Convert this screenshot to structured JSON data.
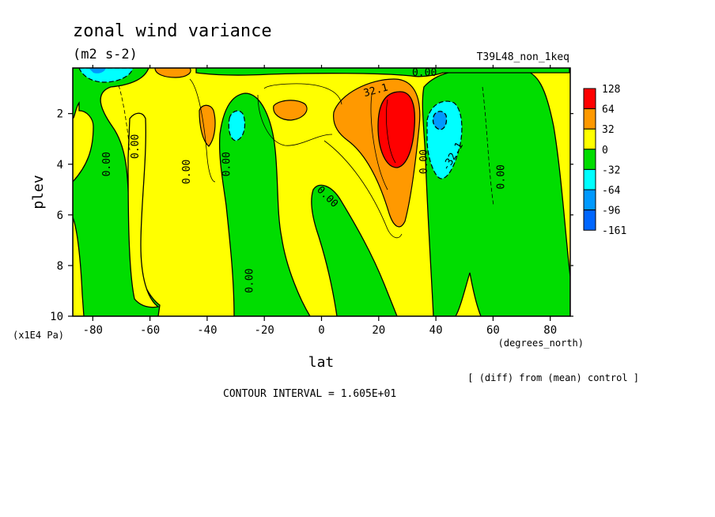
{
  "chart_data": {
    "type": "heatmap",
    "title": "zonal wind variance",
    "units": "(m2 s-2)",
    "run_label": "T39L48_non_1keq",
    "xlabel": "lat",
    "x_units": "(degrees_north)",
    "ylabel": "plev",
    "y_units": "(x1E4 Pa)",
    "xlim": [
      -87,
      87
    ],
    "ylim": [
      10,
      0.2
    ],
    "x_ticks": [
      -80,
      -60,
      -40,
      -20,
      0,
      20,
      40,
      60,
      80
    ],
    "y_ticks": [
      2,
      4,
      6,
      8,
      10
    ],
    "colorbar": {
      "labels": [
        "128",
        "64",
        "32",
        "0",
        "-32",
        "-64",
        "-96",
        "-161"
      ],
      "colors": [
        "#ff0000",
        "#ff9900",
        "#ffff00",
        "#00dd00",
        "#00ffff",
        "#0099ff",
        "#0066ff"
      ]
    },
    "contour_labels": [
      {
        "text": "0.00",
        "lat": -75,
        "plev": 4.0,
        "rotate": -90
      },
      {
        "text": "0.00",
        "lat": -65,
        "plev": 3.3,
        "rotate": -90
      },
      {
        "text": "0.00",
        "lat": -47,
        "plev": 4.3,
        "rotate": -90
      },
      {
        "text": "0.00",
        "lat": -33,
        "plev": 4.0,
        "rotate": -90
      },
      {
        "text": "0.00",
        "lat": -25,
        "plev": 8.6,
        "rotate": -90
      },
      {
        "text": "0.00",
        "lat": 2,
        "plev": 5.3,
        "rotate": 45
      },
      {
        "text": "0.00",
        "lat": 36,
        "plev": 3.9,
        "rotate": -90
      },
      {
        "text": "0.00",
        "lat": 36,
        "plev": 0.4,
        "rotate": 0
      },
      {
        "text": "0.00",
        "lat": 63,
        "plev": 4.5,
        "rotate": -90
      },
      {
        "text": "32.1",
        "lat": 19,
        "plev": 1.1,
        "rotate": -15
      },
      {
        "text": "-32.1",
        "lat": 46,
        "plev": 3.7,
        "rotate": -60
      }
    ]
  },
  "footer": {
    "source_note": "[ (diff) from (mean) control ]",
    "contour_interval": "CONTOUR INTERVAL = 1.605E+01"
  }
}
